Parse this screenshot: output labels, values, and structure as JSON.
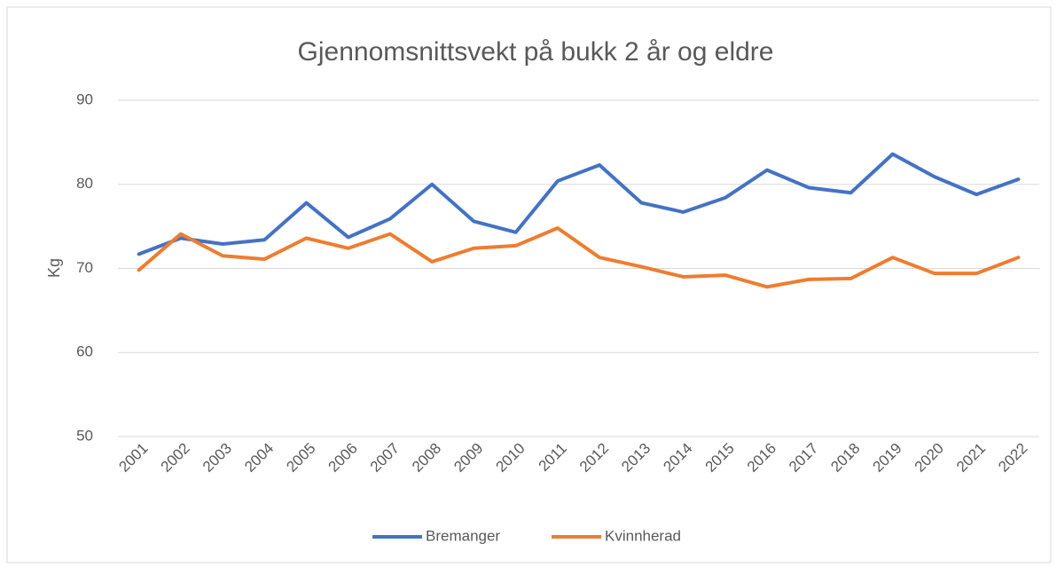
{
  "chart_data": {
    "type": "line",
    "title": "Gjennomsnittsvekt på bukk 2 år og eldre",
    "y_label": "Kg",
    "categories": [
      "2001",
      "2002",
      "2003",
      "2004",
      "2005",
      "2006",
      "2007",
      "2008",
      "2009",
      "2010",
      "2011",
      "2012",
      "2013",
      "2014",
      "2015",
      "2016",
      "2017",
      "2018",
      "2019",
      "2020",
      "2021",
      "2022"
    ],
    "series": [
      {
        "name": "Bremanger",
        "color": "#4472c4",
        "values": [
          71.7,
          73.6,
          72.9,
          73.4,
          77.8,
          73.7,
          75.9,
          80.0,
          75.6,
          74.3,
          80.4,
          82.3,
          77.8,
          76.7,
          78.4,
          81.7,
          79.6,
          79.0,
          83.6,
          80.9,
          78.8,
          80.6
        ]
      },
      {
        "name": "Kvinnherad",
        "color": "#ed7d31",
        "values": [
          69.8,
          74.1,
          71.5,
          71.1,
          73.6,
          72.4,
          74.1,
          70.8,
          72.4,
          72.7,
          74.8,
          71.3,
          70.2,
          69.0,
          69.2,
          67.8,
          68.7,
          68.8,
          71.3,
          69.4,
          69.4,
          71.3
        ]
      }
    ],
    "ylim": [
      50,
      90
    ],
    "yticks": [
      50,
      60,
      70,
      80,
      90
    ],
    "grid": true,
    "legend": "bottom"
  }
}
